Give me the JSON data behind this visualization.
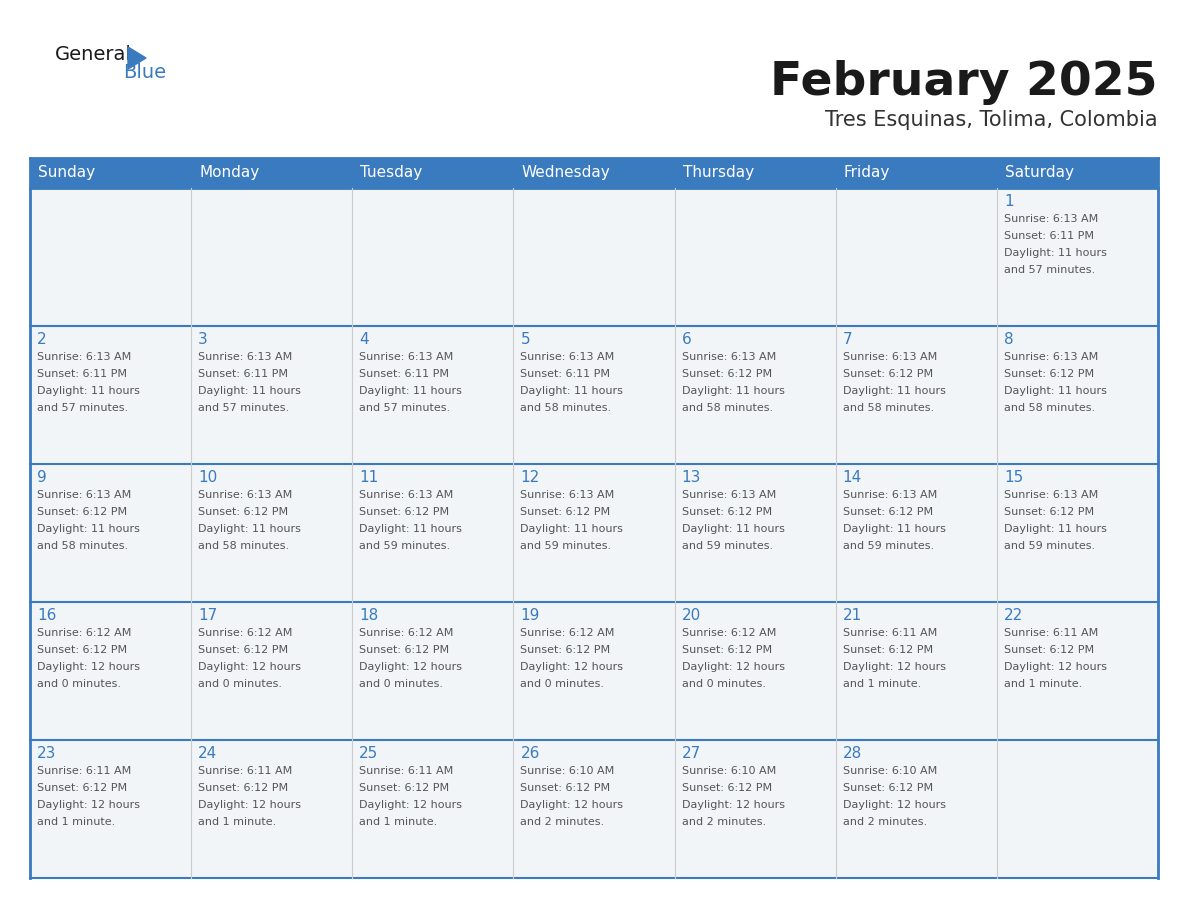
{
  "title": "February 2025",
  "subtitle": "Tres Esquinas, Tolima, Colombia",
  "header_color": "#3a7bbf",
  "header_text_color": "#ffffff",
  "cell_bg_color": "#ffffff",
  "cell_alt_bg": "#f0f4f8",
  "border_color": "#3a7bbf",
  "cell_border_color": "#aaaaaa",
  "day_names": [
    "Sunday",
    "Monday",
    "Tuesday",
    "Wednesday",
    "Thursday",
    "Friday",
    "Saturday"
  ],
  "title_color": "#1a1a1a",
  "subtitle_color": "#333333",
  "day_num_color": "#3a7bbf",
  "text_color": "#555555",
  "logo_general_color": "#1a1a1a",
  "logo_blue_color": "#3a7bbf",
  "fig_width": 11.88,
  "fig_height": 9.18,
  "dpi": 100,
  "calendar": [
    [
      {
        "day": 0,
        "text": ""
      },
      {
        "day": 0,
        "text": ""
      },
      {
        "day": 0,
        "text": ""
      },
      {
        "day": 0,
        "text": ""
      },
      {
        "day": 0,
        "text": ""
      },
      {
        "day": 0,
        "text": ""
      },
      {
        "day": 1,
        "text": "Sunrise: 6:13 AM\nSunset: 6:11 PM\nDaylight: 11 hours\nand 57 minutes."
      }
    ],
    [
      {
        "day": 2,
        "text": "Sunrise: 6:13 AM\nSunset: 6:11 PM\nDaylight: 11 hours\nand 57 minutes."
      },
      {
        "day": 3,
        "text": "Sunrise: 6:13 AM\nSunset: 6:11 PM\nDaylight: 11 hours\nand 57 minutes."
      },
      {
        "day": 4,
        "text": "Sunrise: 6:13 AM\nSunset: 6:11 PM\nDaylight: 11 hours\nand 57 minutes."
      },
      {
        "day": 5,
        "text": "Sunrise: 6:13 AM\nSunset: 6:11 PM\nDaylight: 11 hours\nand 58 minutes."
      },
      {
        "day": 6,
        "text": "Sunrise: 6:13 AM\nSunset: 6:12 PM\nDaylight: 11 hours\nand 58 minutes."
      },
      {
        "day": 7,
        "text": "Sunrise: 6:13 AM\nSunset: 6:12 PM\nDaylight: 11 hours\nand 58 minutes."
      },
      {
        "day": 8,
        "text": "Sunrise: 6:13 AM\nSunset: 6:12 PM\nDaylight: 11 hours\nand 58 minutes."
      }
    ],
    [
      {
        "day": 9,
        "text": "Sunrise: 6:13 AM\nSunset: 6:12 PM\nDaylight: 11 hours\nand 58 minutes."
      },
      {
        "day": 10,
        "text": "Sunrise: 6:13 AM\nSunset: 6:12 PM\nDaylight: 11 hours\nand 58 minutes."
      },
      {
        "day": 11,
        "text": "Sunrise: 6:13 AM\nSunset: 6:12 PM\nDaylight: 11 hours\nand 59 minutes."
      },
      {
        "day": 12,
        "text": "Sunrise: 6:13 AM\nSunset: 6:12 PM\nDaylight: 11 hours\nand 59 minutes."
      },
      {
        "day": 13,
        "text": "Sunrise: 6:13 AM\nSunset: 6:12 PM\nDaylight: 11 hours\nand 59 minutes."
      },
      {
        "day": 14,
        "text": "Sunrise: 6:13 AM\nSunset: 6:12 PM\nDaylight: 11 hours\nand 59 minutes."
      },
      {
        "day": 15,
        "text": "Sunrise: 6:13 AM\nSunset: 6:12 PM\nDaylight: 11 hours\nand 59 minutes."
      }
    ],
    [
      {
        "day": 16,
        "text": "Sunrise: 6:12 AM\nSunset: 6:12 PM\nDaylight: 12 hours\nand 0 minutes."
      },
      {
        "day": 17,
        "text": "Sunrise: 6:12 AM\nSunset: 6:12 PM\nDaylight: 12 hours\nand 0 minutes."
      },
      {
        "day": 18,
        "text": "Sunrise: 6:12 AM\nSunset: 6:12 PM\nDaylight: 12 hours\nand 0 minutes."
      },
      {
        "day": 19,
        "text": "Sunrise: 6:12 AM\nSunset: 6:12 PM\nDaylight: 12 hours\nand 0 minutes."
      },
      {
        "day": 20,
        "text": "Sunrise: 6:12 AM\nSunset: 6:12 PM\nDaylight: 12 hours\nand 0 minutes."
      },
      {
        "day": 21,
        "text": "Sunrise: 6:11 AM\nSunset: 6:12 PM\nDaylight: 12 hours\nand 1 minute."
      },
      {
        "day": 22,
        "text": "Sunrise: 6:11 AM\nSunset: 6:12 PM\nDaylight: 12 hours\nand 1 minute."
      }
    ],
    [
      {
        "day": 23,
        "text": "Sunrise: 6:11 AM\nSunset: 6:12 PM\nDaylight: 12 hours\nand 1 minute."
      },
      {
        "day": 24,
        "text": "Sunrise: 6:11 AM\nSunset: 6:12 PM\nDaylight: 12 hours\nand 1 minute."
      },
      {
        "day": 25,
        "text": "Sunrise: 6:11 AM\nSunset: 6:12 PM\nDaylight: 12 hours\nand 1 minute."
      },
      {
        "day": 26,
        "text": "Sunrise: 6:10 AM\nSunset: 6:12 PM\nDaylight: 12 hours\nand 2 minutes."
      },
      {
        "day": 27,
        "text": "Sunrise: 6:10 AM\nSunset: 6:12 PM\nDaylight: 12 hours\nand 2 minutes."
      },
      {
        "day": 28,
        "text": "Sunrise: 6:10 AM\nSunset: 6:12 PM\nDaylight: 12 hours\nand 2 minutes."
      },
      {
        "day": 0,
        "text": ""
      }
    ]
  ]
}
